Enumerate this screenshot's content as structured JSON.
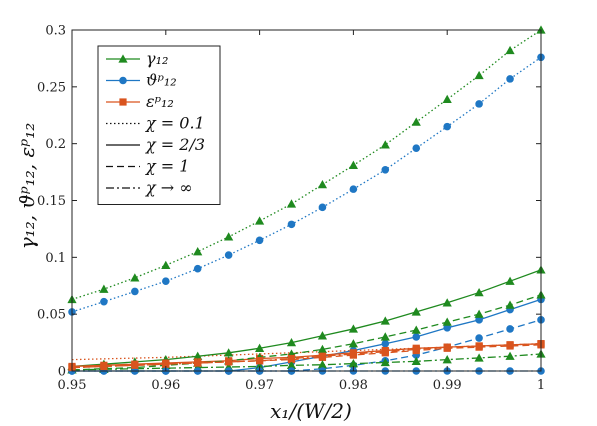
{
  "chart_data": {
    "type": "line",
    "title": "",
    "xlabel": "x₁/(W/2)",
    "ylabel": "γ₁₂, ϑᵖ₁₂, εᵖ₁₂",
    "xlim": [
      0.95,
      1.0
    ],
    "ylim": [
      0,
      0.3
    ],
    "xticks": [
      "0.95",
      "0.96",
      "0.97",
      "0.98",
      "0.99",
      "1"
    ],
    "yticks": [
      "0",
      "0.05",
      "0.1",
      "0.15",
      "0.2",
      "0.25",
      "0.3"
    ],
    "grid": false,
    "legend_position": "top-left",
    "legend": {
      "quantities": [
        {
          "label": "γ₁₂",
          "color": "#1f8a1f",
          "marker": "triangle"
        },
        {
          "label": "ϑᵖ₁₂",
          "color": "#1f77c4",
          "marker": "circle"
        },
        {
          "label": "εᵖ₁₂",
          "color": "#d9541e",
          "marker": "square"
        }
      ],
      "cases": [
        {
          "label": "χ = 0.1",
          "style": "dotted"
        },
        {
          "label": "χ = 2/3",
          "style": "solid"
        },
        {
          "label": "χ = 1",
          "style": "dashed"
        },
        {
          "label": "χ → ∞",
          "style": "dashdot"
        }
      ]
    },
    "series": [
      {
        "quantity": "γ₁₂",
        "chi": "0.1",
        "style": "dotted",
        "color": "#1f8a1f",
        "marker": "triangle",
        "x": [
          0.95,
          0.9534,
          0.9567,
          0.96,
          0.9634,
          0.9667,
          0.97,
          0.9734,
          0.9767,
          0.98,
          0.9834,
          0.9867,
          0.99,
          0.9934,
          0.9967,
          1.0
        ],
        "y": [
          0.063,
          0.072,
          0.082,
          0.093,
          0.105,
          0.118,
          0.132,
          0.147,
          0.164,
          0.181,
          0.199,
          0.219,
          0.239,
          0.26,
          0.282,
          0.3
        ]
      },
      {
        "quantity": "ϑᵖ₁₂",
        "chi": "0.1",
        "style": "dotted",
        "color": "#1f77c4",
        "marker": "circle",
        "x": [
          0.95,
          0.9534,
          0.9567,
          0.96,
          0.9634,
          0.9667,
          0.97,
          0.9734,
          0.9767,
          0.98,
          0.9834,
          0.9867,
          0.99,
          0.9934,
          0.9967,
          1.0
        ],
        "y": [
          0.052,
          0.061,
          0.07,
          0.079,
          0.09,
          0.102,
          0.115,
          0.129,
          0.144,
          0.16,
          0.177,
          0.196,
          0.215,
          0.235,
          0.257,
          0.276
        ]
      },
      {
        "quantity": "εᵖ₁₂",
        "chi": "0.1",
        "style": "dotted",
        "color": "#d9541e",
        "marker": "none",
        "x": [
          0.95,
          0.96,
          0.97,
          0.98,
          0.99,
          1.0
        ],
        "y": [
          0.01,
          0.012,
          0.015,
          0.018,
          0.021,
          0.024
        ]
      },
      {
        "quantity": "γ₁₂",
        "chi": "2/3",
        "style": "solid",
        "color": "#1f8a1f",
        "marker": "triangle",
        "x": [
          0.95,
          0.9534,
          0.9567,
          0.96,
          0.9634,
          0.9667,
          0.97,
          0.9734,
          0.9767,
          0.98,
          0.9834,
          0.9867,
          0.99,
          0.9934,
          0.9967,
          1.0
        ],
        "y": [
          0.004,
          0.006,
          0.008,
          0.01,
          0.013,
          0.016,
          0.02,
          0.025,
          0.031,
          0.037,
          0.044,
          0.052,
          0.06,
          0.069,
          0.079,
          0.089
        ]
      },
      {
        "quantity": "ϑᵖ₁₂",
        "chi": "2/3",
        "style": "solid",
        "color": "#1f77c4",
        "marker": "circle",
        "x": [
          0.95,
          0.96,
          0.9667,
          0.97,
          0.9734,
          0.9767,
          0.98,
          0.9834,
          0.9867,
          0.99,
          0.9934,
          0.9967,
          1.0
        ],
        "y": [
          0.0,
          0.0,
          0.0,
          0.003,
          0.008,
          0.013,
          0.018,
          0.024,
          0.03,
          0.038,
          0.045,
          0.054,
          0.063
        ]
      },
      {
        "quantity": "εᵖ₁₂",
        "chi": "2/3",
        "style": "solid",
        "color": "#d9541e",
        "marker": "square",
        "x": [
          0.95,
          0.9534,
          0.9567,
          0.96,
          0.9634,
          0.9667,
          0.97,
          0.9734,
          0.9767,
          0.98,
          0.9834,
          0.9867,
          0.99,
          0.9934,
          0.9967,
          1.0
        ],
        "y": [
          0.004,
          0.005,
          0.006,
          0.007,
          0.008,
          0.009,
          0.011,
          0.012,
          0.014,
          0.016,
          0.018,
          0.02,
          0.021,
          0.022,
          0.023,
          0.024
        ]
      },
      {
        "quantity": "γ₁₂",
        "chi": "1",
        "style": "dashed",
        "color": "#1f8a1f",
        "marker": "triangle",
        "x": [
          0.95,
          0.9534,
          0.9567,
          0.96,
          0.9634,
          0.9667,
          0.97,
          0.9734,
          0.9767,
          0.98,
          0.9834,
          0.9867,
          0.99,
          0.9934,
          0.9967,
          1.0
        ],
        "y": [
          0.001,
          0.002,
          0.003,
          0.005,
          0.007,
          0.009,
          0.012,
          0.015,
          0.019,
          0.024,
          0.03,
          0.036,
          0.043,
          0.05,
          0.058,
          0.067
        ]
      },
      {
        "quantity": "ϑᵖ₁₂",
        "chi": "1",
        "style": "dashed",
        "color": "#1f77c4",
        "marker": "circle",
        "x": [
          0.95,
          0.9534,
          0.9567,
          0.96,
          0.9634,
          0.9667,
          0.97,
          0.9734,
          0.9767,
          0.98,
          0.9834,
          0.9867,
          0.99,
          0.9934,
          0.9967,
          1.0
        ],
        "y": [
          0.0,
          0.0,
          0.0,
          0.0,
          0.0,
          0.0,
          0.0,
          0.0,
          0.002,
          0.005,
          0.009,
          0.014,
          0.021,
          0.029,
          0.037,
          0.045
        ]
      },
      {
        "quantity": "εᵖ₁₂",
        "chi": "1",
        "style": "dashed",
        "color": "#d9541e",
        "marker": "square",
        "x": [
          0.95,
          0.9534,
          0.9567,
          0.96,
          0.9634,
          0.9667,
          0.97,
          0.9734,
          0.9767,
          0.98,
          0.9834,
          0.9867,
          0.99,
          0.9934,
          0.9967,
          1.0
        ],
        "y": [
          0.003,
          0.004,
          0.005,
          0.006,
          0.007,
          0.008,
          0.009,
          0.01,
          0.012,
          0.014,
          0.016,
          0.018,
          0.02,
          0.021,
          0.022,
          0.023
        ]
      },
      {
        "quantity": "γ₁₂",
        "chi": "∞",
        "style": "dashdot",
        "color": "#1f8a1f",
        "marker": "triangle",
        "x": [
          0.95,
          0.9534,
          0.9567,
          0.96,
          0.9634,
          0.9667,
          0.97,
          0.9734,
          0.9767,
          0.98,
          0.9834,
          0.9867,
          0.99,
          0.9934,
          0.9967,
          1.0
        ],
        "y": [
          0.001,
          0.0015,
          0.002,
          0.0025,
          0.003,
          0.0035,
          0.004,
          0.005,
          0.0055,
          0.0065,
          0.0075,
          0.0085,
          0.01,
          0.0115,
          0.013,
          0.015
        ]
      },
      {
        "quantity": "ϑᵖ₁₂",
        "chi": "∞",
        "style": "dashdot",
        "color": "#1f77c4",
        "marker": "circle",
        "x": [
          0.95,
          0.9534,
          0.9567,
          0.96,
          0.9634,
          0.9667,
          0.97,
          0.9734,
          0.9767,
          0.98,
          0.9834,
          0.9867,
          0.99,
          0.9934,
          0.9967,
          1.0
        ],
        "y": [
          0.0,
          0.0,
          0.0,
          0.0,
          0.0,
          0.0,
          0.0,
          0.0,
          0.0,
          0.0,
          0.0,
          0.0,
          0.0,
          0.0,
          0.0,
          0.0
        ]
      },
      {
        "quantity": "εᵖ₁₂",
        "chi": "∞",
        "style": "dashdot",
        "color": "#d9541e",
        "marker": "square",
        "x": [
          0.95,
          0.9534,
          0.9567,
          0.96,
          0.9634,
          0.9667,
          0.97,
          0.9734,
          0.9767,
          0.98,
          0.9834,
          0.9867,
          0.99,
          0.9934,
          0.9967,
          1.0
        ],
        "y": [
          0.003,
          0.004,
          0.005,
          0.006,
          0.007,
          0.008,
          0.009,
          0.011,
          0.013,
          0.015,
          0.017,
          0.019,
          0.021,
          0.022,
          0.023,
          0.024
        ]
      }
    ]
  }
}
